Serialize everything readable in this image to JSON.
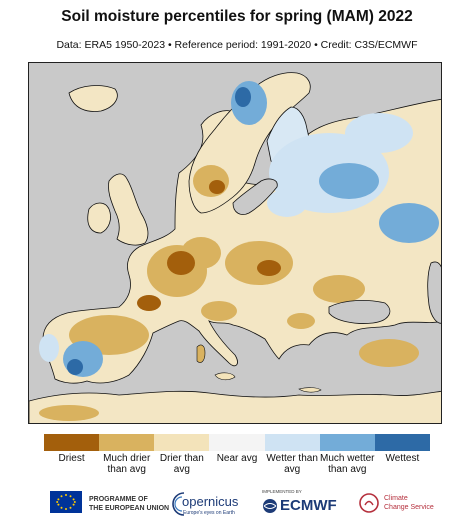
{
  "title": "Soil moisture percentiles for spring (MAM) 2022",
  "subtitle": "Data: ERA5 1950-2023 • Reference period: 1991-2020 • Credit: C3S/ECMWF",
  "legend": [
    {
      "label": "Driest",
      "color": "#a35f0c"
    },
    {
      "label": "Much drier than avg",
      "color": "#d9b25f"
    },
    {
      "label": "Drier than avg",
      "color": "#f3e3ba"
    },
    {
      "label": "Near avg",
      "color": "#f4f4f4"
    },
    {
      "label": "Wetter than avg",
      "color": "#cfe3f3"
    },
    {
      "label": "Much wetter than avg",
      "color": "#73acd8"
    },
    {
      "label": "Wettest",
      "color": "#2d6aa6"
    }
  ],
  "map_colors": {
    "sea": "#c9c9c9",
    "land": "#f3e6c4",
    "coast": "#111111"
  },
  "logos": {
    "eu_text": [
      "PROGRAMME OF",
      "THE EUROPEAN UNION"
    ],
    "copernicus_name": "opernicus",
    "copernicus_tag": "Europe's eyes on Earth",
    "ecmwf_small": "IMPLEMENTED BY",
    "ecmwf_name": "ECMWF",
    "c3s_text": [
      "Climate",
      "Change Service"
    ]
  }
}
